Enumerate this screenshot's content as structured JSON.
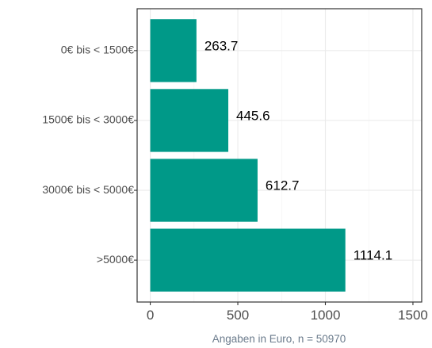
{
  "chart_data": {
    "type": "bar",
    "orientation": "horizontal",
    "categories": [
      "0€ bis < 1500€",
      "1500€ bis < 3000€",
      "3000€ bis < 5000€",
      ">5000€"
    ],
    "values": [
      263.7,
      445.6,
      612.7,
      1114.1
    ],
    "data_labels": [
      "263.7",
      "445.6",
      "612.7",
      "1114.1"
    ],
    "xlabel": "Angaben in Euro, n = 50970",
    "ylabel": "",
    "xlim": [
      -75,
      1550
    ],
    "xticks": [
      0,
      500,
      1000,
      1500
    ],
    "grid": true,
    "bar_color": "#009988",
    "legend": "none"
  }
}
